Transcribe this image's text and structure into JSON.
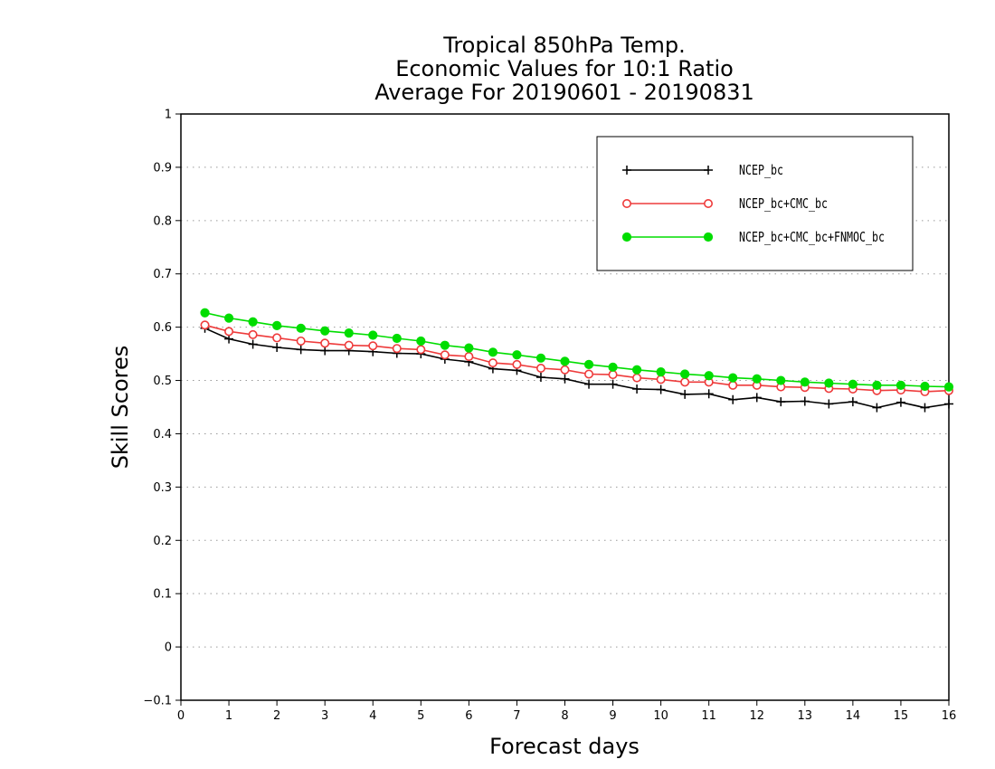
{
  "chart_data": {
    "type": "line",
    "title": [
      "Tropical 850hPa Temp.",
      "Economic Values for 10:1 Ratio",
      "Average For 20190601 - 20190831"
    ],
    "xlabel": "Forecast days",
    "ylabel": "Skill Scores",
    "xlim": [
      0,
      16
    ],
    "ylim": [
      -0.1,
      1
    ],
    "xticks": [
      "0",
      "1",
      "2",
      "3",
      "4",
      "5",
      "6",
      "7",
      "8",
      "9",
      "10",
      "11",
      "12",
      "13",
      "14",
      "15",
      "16"
    ],
    "yticks": [
      "−0.1",
      "0",
      "0.1",
      "0.2",
      "0.3",
      "0.4",
      "0.5",
      "0.6",
      "0.7",
      "0.8",
      "0.9",
      "1"
    ],
    "grid": true,
    "legend_position": "top-right",
    "x": [
      0.5,
      1,
      1.5,
      2,
      2.5,
      3,
      3.5,
      4,
      4.5,
      5,
      5.5,
      6,
      6.5,
      7,
      7.5,
      8,
      8.5,
      9,
      9.5,
      10,
      10.5,
      11,
      11.5,
      12,
      12.5,
      13,
      13.5,
      14,
      14.5,
      15,
      15.5,
      16
    ],
    "series": [
      {
        "name": "NCEP_bc",
        "color": "#000000",
        "marker": "plus",
        "values": [
          0.598,
          0.578,
          0.568,
          0.562,
          0.558,
          0.556,
          0.556,
          0.554,
          0.551,
          0.55,
          0.54,
          0.535,
          0.522,
          0.519,
          0.506,
          0.503,
          0.493,
          0.493,
          0.484,
          0.483,
          0.474,
          0.475,
          0.464,
          0.468,
          0.46,
          0.461,
          0.456,
          0.46,
          0.449,
          0.459,
          0.449,
          0.456
        ]
      },
      {
        "name": "NCEP_bc+CMC_bc",
        "color": "#ee3b3b",
        "marker": "open-circle",
        "values": [
          0.604,
          0.592,
          0.586,
          0.58,
          0.574,
          0.57,
          0.566,
          0.565,
          0.56,
          0.558,
          0.548,
          0.545,
          0.533,
          0.53,
          0.523,
          0.52,
          0.512,
          0.511,
          0.505,
          0.502,
          0.497,
          0.497,
          0.491,
          0.491,
          0.488,
          0.487,
          0.485,
          0.484,
          0.481,
          0.482,
          0.479,
          0.481
        ]
      },
      {
        "name": "NCEP_bc+CMC_bc+FNMOC_bc",
        "color": "#00dd00",
        "marker": "filled-circle",
        "values": [
          0.627,
          0.617,
          0.61,
          0.603,
          0.598,
          0.593,
          0.589,
          0.585,
          0.579,
          0.574,
          0.566,
          0.561,
          0.553,
          0.548,
          0.542,
          0.536,
          0.53,
          0.525,
          0.52,
          0.516,
          0.512,
          0.509,
          0.505,
          0.503,
          0.5,
          0.497,
          0.495,
          0.493,
          0.491,
          0.491,
          0.489,
          0.488
        ]
      }
    ]
  }
}
